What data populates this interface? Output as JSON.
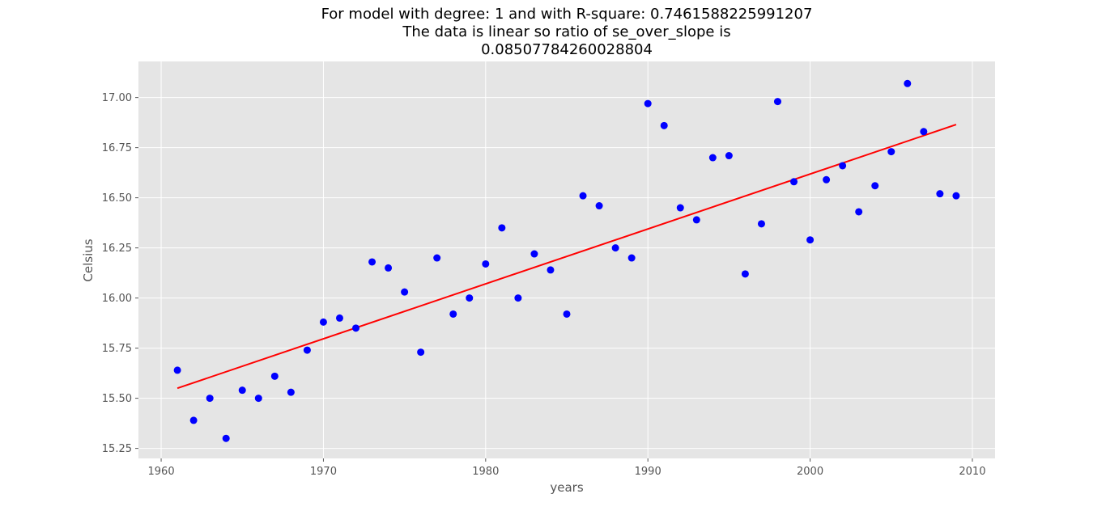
{
  "chart_data": {
    "type": "scatter",
    "title_lines": [
      "For model with degree: 1 and with R-square: 0.7461588225991207",
      "The data is linear so ratio of se_over_slope is",
      "0.08507784260028804"
    ],
    "xlabel": "years",
    "ylabel": "Celsius",
    "xlim": [
      1958.6,
      2011.4
    ],
    "ylim": [
      15.2,
      17.18
    ],
    "xticks": [
      1960,
      1970,
      1980,
      1990,
      2000,
      2010
    ],
    "yticks": [
      "15.25",
      "15.50",
      "15.75",
      "16.00",
      "16.25",
      "16.50",
      "16.75",
      "17.00"
    ],
    "grid": true,
    "series": [
      {
        "kind": "points",
        "color": "#0000ff",
        "x": [
          1961,
          1962,
          1963,
          1964,
          1965,
          1966,
          1967,
          1968,
          1969,
          1970,
          1971,
          1972,
          1973,
          1974,
          1975,
          1976,
          1977,
          1978,
          1979,
          1980,
          1981,
          1982,
          1983,
          1984,
          1985,
          1986,
          1987,
          1988,
          1989,
          1990,
          1991,
          1992,
          1993,
          1994,
          1995,
          1996,
          1997,
          1998,
          1999,
          2000,
          2001,
          2002,
          2003,
          2004,
          2005,
          2006,
          2007,
          2008,
          2009
        ],
        "y": [
          15.64,
          15.39,
          15.5,
          15.3,
          15.54,
          15.5,
          15.61,
          15.53,
          15.74,
          15.88,
          15.9,
          15.85,
          16.18,
          16.15,
          16.03,
          15.73,
          16.2,
          15.92,
          16.0,
          16.17,
          16.35,
          16.0,
          16.22,
          16.14,
          15.92,
          16.51,
          16.46,
          16.25,
          16.2,
          16.97,
          16.86,
          16.45,
          16.39,
          16.7,
          16.71,
          16.12,
          16.37,
          16.98,
          16.58,
          16.29,
          16.59,
          16.66,
          16.43,
          16.56,
          16.73,
          17.07,
          16.83,
          16.52,
          16.51
        ]
      },
      {
        "kind": "fit-line",
        "color": "#ff0000",
        "x": [
          1961,
          2009
        ],
        "y": [
          15.55,
          16.865
        ]
      }
    ]
  }
}
